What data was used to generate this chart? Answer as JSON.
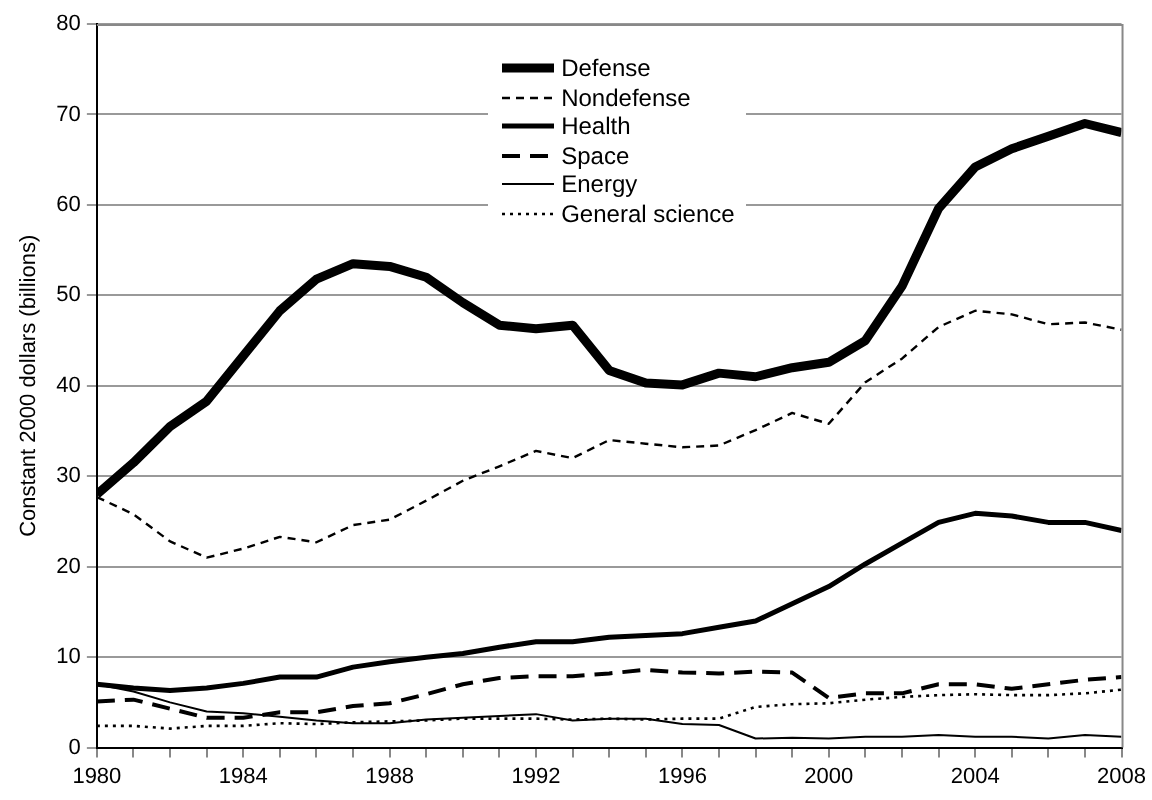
{
  "chart_data": {
    "type": "line",
    "ylabel": "Constant 2000 dollars (billions)",
    "x": [
      1980,
      1981,
      1982,
      1983,
      1984,
      1985,
      1986,
      1987,
      1988,
      1989,
      1990,
      1991,
      1992,
      1993,
      1994,
      1995,
      1996,
      1997,
      1998,
      1999,
      2000,
      2001,
      2002,
      2003,
      2004,
      2005,
      2006,
      2007,
      2008
    ],
    "series": [
      {
        "name": "Defense",
        "color": "#000000",
        "line_style": "solid",
        "values": [
          28,
          31.5,
          35.5,
          38.3,
          43.3,
          48.3,
          51.8,
          53.5,
          53.2,
          52,
          49.2,
          46.7,
          46.3,
          46.7,
          41.7,
          40.3,
          40.1,
          41.4,
          41,
          42,
          42.6,
          45,
          51,
          59.6,
          64.2,
          66.2,
          67.6,
          69,
          68
        ]
      },
      {
        "name": "Nondefense",
        "color": "#000000",
        "line_style": "dashed",
        "values": [
          27.7,
          25.8,
          22.8,
          21,
          22,
          23.3,
          22.7,
          24.6,
          25.2,
          27.3,
          29.5,
          31.1,
          32.8,
          32,
          34,
          33.6,
          33.2,
          33.4,
          35.1,
          37,
          35.8,
          40.4,
          43,
          46.5,
          48.3,
          47.9,
          46.8,
          47,
          46.2
        ]
      },
      {
        "name": "Health",
        "color": "#000000",
        "line_style": "solid",
        "values": [
          7,
          6.6,
          6.3,
          6.6,
          7.1,
          7.8,
          7.8,
          8.9,
          9.5,
          10,
          10.4,
          11.1,
          11.7,
          11.7,
          12.2,
          12.4,
          12.6,
          13.3,
          14,
          15.9,
          17.8,
          20.3,
          22.6,
          24.9,
          25.9,
          25.6,
          24.9,
          24.9,
          24
        ]
      },
      {
        "name": "Space",
        "color": "#000000",
        "line_style": "dashed",
        "values": [
          5.1,
          5.3,
          4.3,
          3.3,
          3.3,
          3.9,
          3.9,
          4.6,
          4.9,
          5.9,
          7,
          7.7,
          7.9,
          7.9,
          8.2,
          8.6,
          8.3,
          8.2,
          8.4,
          8.3,
          5.5,
          6,
          6,
          7,
          7,
          6.5,
          7,
          7.5,
          7.8
        ]
      },
      {
        "name": "Energy",
        "color": "#000000",
        "line_style": "solid",
        "values": [
          7,
          6.2,
          5,
          4,
          3.8,
          3.4,
          3,
          2.7,
          2.7,
          3.1,
          3.3,
          3.5,
          3.7,
          3,
          3.2,
          3.2,
          2.6,
          2.5,
          1,
          1.1,
          1,
          1.2,
          1.2,
          1.4,
          1.2,
          1.2,
          1,
          1.4,
          1.2
        ]
      },
      {
        "name": "General science",
        "color": "#000000",
        "line_style": "dotted",
        "values": [
          2.4,
          2.4,
          2.1,
          2.4,
          2.4,
          2.7,
          2.6,
          2.8,
          2.9,
          3,
          3.2,
          3.2,
          3.2,
          3.1,
          3.2,
          3.1,
          3.2,
          3.2,
          4.5,
          4.8,
          4.9,
          5.3,
          5.6,
          5.8,
          5.9,
          5.8,
          5.8,
          6,
          6.4
        ]
      }
    ],
    "xlim": [
      1980,
      2008
    ],
    "xticks": [
      1980,
      {
        "value": 1981,
        "label": null
      },
      {
        "value": 1982,
        "label": null
      },
      {
        "value": 1983,
        "label": null
      },
      1984,
      {
        "value": 1985,
        "label": null
      },
      {
        "value": 1986,
        "label": null
      },
      {
        "value": 1987,
        "label": null
      },
      1988,
      {
        "value": 1989,
        "label": null
      },
      {
        "value": 1990,
        "label": null
      },
      {
        "value": 1991,
        "label": null
      },
      1992,
      {
        "value": 1993,
        "label": null
      },
      {
        "value": 1994,
        "label": null
      },
      {
        "value": 1995,
        "label": null
      },
      1996,
      {
        "value": 1997,
        "label": null
      },
      {
        "value": 1998,
        "label": null
      },
      {
        "value": 1999,
        "label": null
      },
      2000,
      {
        "value": 2001,
        "label": null
      },
      {
        "value": 2002,
        "label": null
      },
      {
        "value": 2003,
        "label": null
      },
      2004,
      {
        "value": 2005,
        "label": null
      },
      {
        "value": 2006,
        "label": null
      },
      {
        "value": 2007,
        "label": null
      },
      2008
    ],
    "ylim": [
      0,
      80
    ],
    "yticks": [
      0,
      10,
      20,
      30,
      40,
      50,
      60,
      70,
      80
    ],
    "grid": "y",
    "legend": "top",
    "marker": "none"
  }
}
